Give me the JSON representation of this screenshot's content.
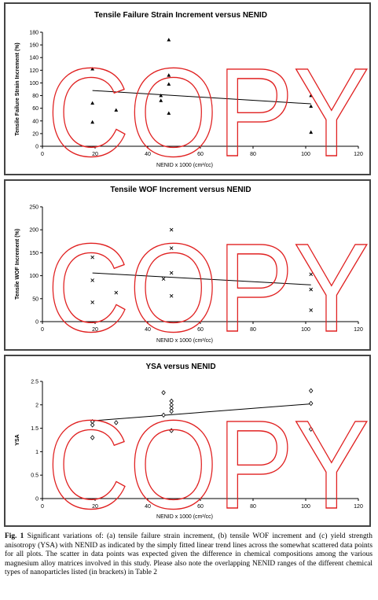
{
  "watermark": "COPY",
  "colors": {
    "watermark": "#e02020",
    "axis": "#000000",
    "trend": "#000000",
    "border": "#444444"
  },
  "chart_data": [
    {
      "type": "scatter",
      "title": "Tensile Failure Strain Increment versus NENID",
      "xlabel": "NENID x 1000 (cm²/cc)",
      "ylabel": "Tensile Failure Strain Increment (%)",
      "xlim": [
        0,
        120
      ],
      "ylim": [
        0,
        180
      ],
      "xticks": [
        0,
        20,
        40,
        60,
        80,
        100,
        120
      ],
      "yticks": [
        0,
        20,
        40,
        60,
        80,
        100,
        120,
        140,
        160,
        180
      ],
      "marker": "triangle",
      "points": [
        [
          19,
          122
        ],
        [
          19,
          68
        ],
        [
          19,
          38
        ],
        [
          28,
          57
        ],
        [
          45,
          80
        ],
        [
          45,
          72
        ],
        [
          48,
          168
        ],
        [
          48,
          112
        ],
        [
          48,
          98
        ],
        [
          48,
          52
        ],
        [
          102,
          80
        ],
        [
          102,
          63
        ],
        [
          102,
          22
        ]
      ],
      "trendline": [
        [
          19,
          88
        ],
        [
          102,
          67
        ]
      ],
      "grid": false
    },
    {
      "type": "scatter",
      "title": "Tensile WOF Increment versus NENID",
      "xlabel": "NENID x 1000 (cm²/cc)",
      "ylabel": "Tensile WOF Increment (%)",
      "xlim": [
        0,
        120
      ],
      "ylim": [
        0,
        250
      ],
      "xticks": [
        0,
        20,
        40,
        60,
        80,
        100,
        120
      ],
      "yticks": [
        0,
        50,
        100,
        150,
        200,
        250
      ],
      "marker": "x",
      "points": [
        [
          19,
          140
        ],
        [
          19,
          90
        ],
        [
          19,
          42
        ],
        [
          28,
          63
        ],
        [
          46,
          93
        ],
        [
          49,
          200
        ],
        [
          49,
          160
        ],
        [
          49,
          106
        ],
        [
          49,
          56
        ],
        [
          102,
          103
        ],
        [
          102,
          70
        ],
        [
          102,
          25
        ]
      ],
      "trendline": [
        [
          19,
          106
        ],
        [
          102,
          80
        ]
      ],
      "grid": false
    },
    {
      "type": "scatter",
      "title": "YSA versus NENID",
      "xlabel": "NENID x 1000 (cm²/cc)",
      "ylabel": "YSA",
      "xlim": [
        0,
        120
      ],
      "ylim": [
        0,
        2.5
      ],
      "xticks": [
        0,
        20,
        40,
        60,
        80,
        100,
        120
      ],
      "yticks": [
        "0",
        "0.5",
        "1",
        "1.5",
        "2",
        "2.5"
      ],
      "marker": "diamond",
      "points": [
        [
          19,
          1.64
        ],
        [
          19,
          1.57
        ],
        [
          19,
          1.3
        ],
        [
          28,
          1.62
        ],
        [
          46,
          2.26
        ],
        [
          46,
          1.78
        ],
        [
          49,
          2.08
        ],
        [
          49,
          2.0
        ],
        [
          49,
          1.93
        ],
        [
          49,
          1.86
        ],
        [
          49,
          1.45
        ],
        [
          102,
          2.3
        ],
        [
          102,
          2.03
        ],
        [
          102,
          1.48
        ]
      ],
      "trendline": [
        [
          19,
          1.66
        ],
        [
          102,
          2.02
        ]
      ],
      "grid": false
    }
  ],
  "caption": {
    "label": "Fig. 1",
    "text": "Significant variations of: (a) tensile failure strain increment, (b) tensile WOF increment and (c) yield strength anisotropy (YSA) with NENID as indicated by the simply fitted linear trend lines across the somewhat scattered data points for all plots. The scatter in data points was expected given the difference in chemical compositions among the various magnesium alloy matrices involved in this study. Please also note the overlapping NENID ranges of the different chemical types of nanoparticles listed (in brackets) in Table 2"
  }
}
